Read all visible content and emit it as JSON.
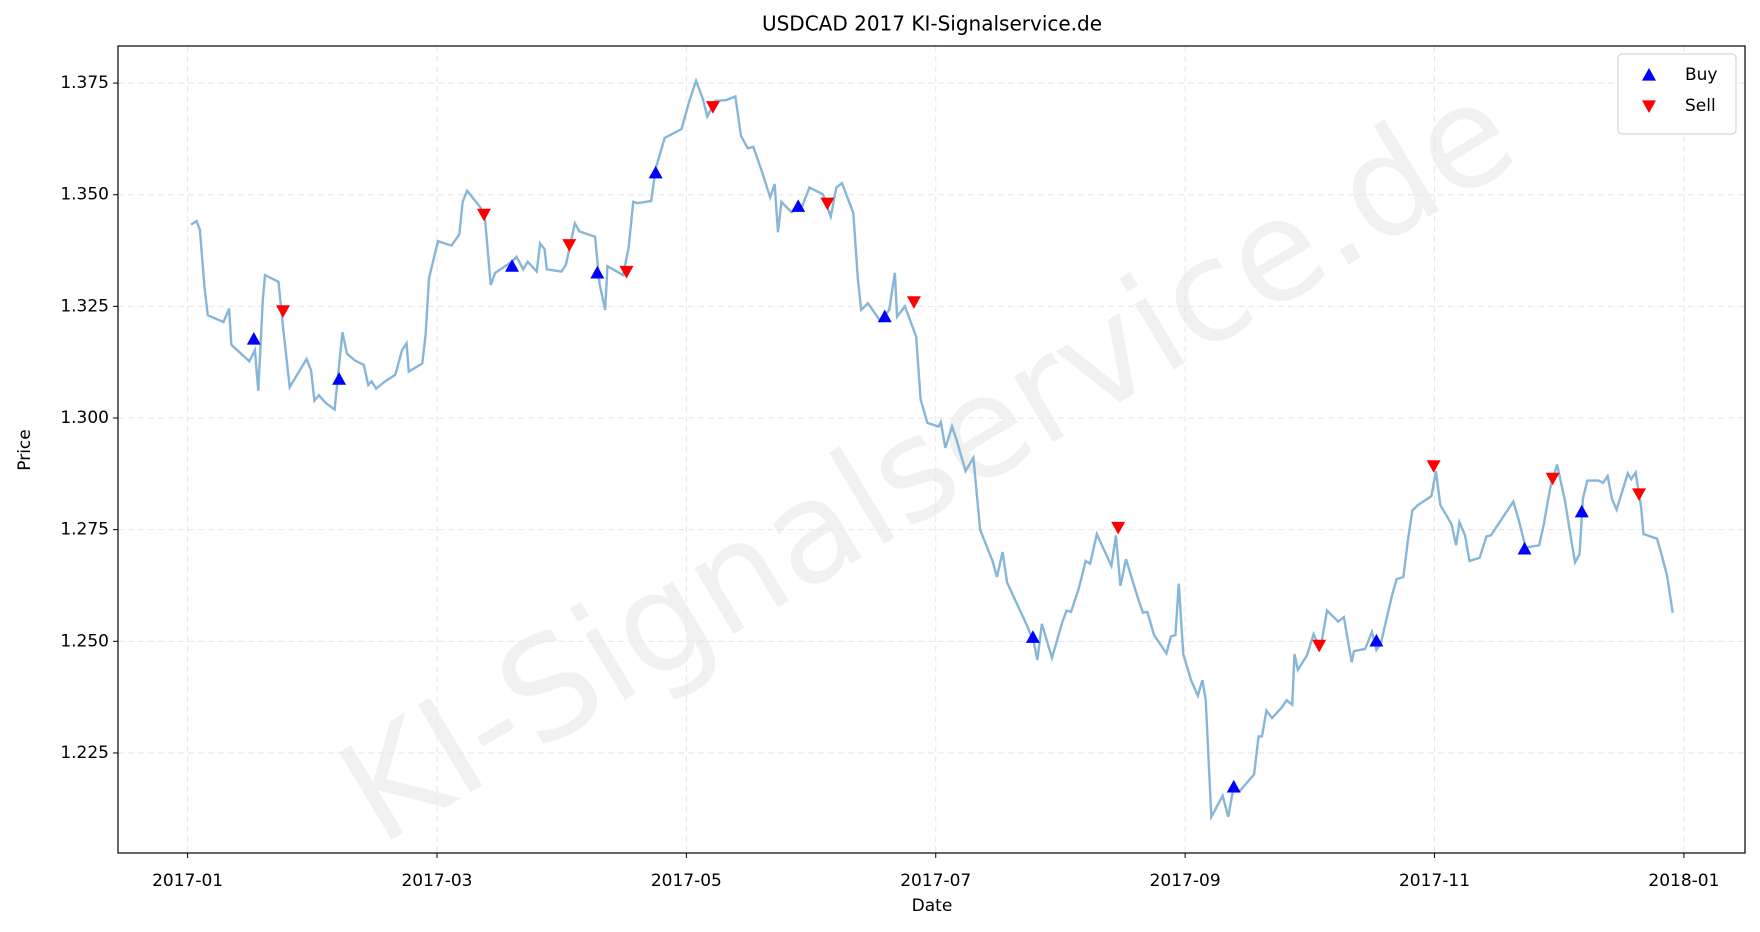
{
  "chart_data": {
    "type": "line",
    "title": "USDCAD 2017 KI-Signalservice.de",
    "x_label": "Date",
    "y_label": "Price",
    "watermark": "KI-Signalservice.de",
    "grid": true,
    "legend": "upper right",
    "xlim": [
      -0.558,
      12.49
    ],
    "ylim": [
      1.2026,
      1.3833
    ],
    "xticks": [
      {
        "value": 0,
        "label": "2017-01"
      },
      {
        "value": 2,
        "label": "2017-03"
      },
      {
        "value": 4,
        "label": "2017-05"
      },
      {
        "value": 6,
        "label": "2017-07"
      },
      {
        "value": 8,
        "label": "2017-09"
      },
      {
        "value": 10,
        "label": "2017-11"
      },
      {
        "value": 12,
        "label": "2018-01"
      }
    ],
    "yticks": [
      1.225,
      {
        "value": 1.25,
        "label": "1.250"
      },
      1.275,
      {
        "value": 1.3,
        "label": "1.300"
      },
      1.325,
      {
        "value": 1.35,
        "label": "1.350"
      },
      1.375
    ],
    "series": [
      {
        "color": "#86b6d8",
        "x": [
          0.027,
          0.072,
          0.099,
          0.135,
          0.162,
          0.288,
          0.333,
          0.351,
          0.495,
          0.54,
          0.567,
          0.603,
          0.621,
          0.729,
          0.765,
          0.819,
          0.954,
          0.99,
          1.017,
          1.053,
          1.107,
          1.179,
          1.242,
          1.278,
          1.341,
          1.413,
          1.449,
          1.476,
          1.512,
          1.584,
          1.666,
          1.72,
          1.756,
          1.774,
          1.882,
          1.909,
          1.936,
          2.008,
          2.116,
          2.179,
          2.206,
          2.242,
          2.35,
          2.386,
          2.431,
          2.467,
          2.602,
          2.638,
          2.692,
          2.728,
          2.8,
          2.827,
          2.863,
          2.881,
          2.998,
          3.034,
          3.106,
          3.142,
          3.268,
          3.304,
          3.349,
          3.367,
          3.493,
          3.538,
          3.574,
          3.61,
          3.718,
          3.754,
          3.826,
          3.961,
          4.024,
          4.078,
          4.132,
          4.168,
          4.231,
          4.321,
          4.393,
          4.438,
          4.492,
          4.537,
          4.6,
          4.672,
          4.708,
          4.735,
          4.762,
          4.843,
          4.924,
          4.987,
          5.095,
          5.158,
          5.203,
          5.248,
          5.339,
          5.375,
          5.402,
          5.456,
          5.555,
          5.627,
          5.672,
          5.69,
          5.753,
          5.843,
          5.879,
          5.933,
          6.023,
          6.041,
          6.077,
          6.131,
          6.167,
          6.239,
          6.302,
          6.356,
          6.455,
          6.491,
          6.536,
          6.572,
          6.626,
          6.734,
          6.788,
          6.815,
          6.851,
          6.932,
          7.013,
          7.049,
          7.085,
          7.148,
          7.202,
          7.238,
          7.292,
          7.346,
          7.409,
          7.445,
          7.481,
          7.526,
          7.58,
          7.625,
          7.661,
          7.697,
          7.751,
          7.85,
          7.886,
          7.922,
          7.949,
          7.985,
          8.048,
          8.102,
          8.138,
          8.165,
          8.21,
          8.301,
          8.346,
          8.382,
          8.436,
          8.553,
          8.589,
          8.616,
          8.652,
          8.697,
          8.778,
          8.814,
          8.859,
          8.877,
          8.904,
          8.976,
          9.03,
          9.066,
          9.093,
          9.138,
          9.228,
          9.273,
          9.336,
          9.354,
          9.444,
          9.498,
          9.534,
          9.57,
          9.66,
          9.696,
          9.75,
          9.786,
          9.822,
          9.867,
          9.975,
          10.011,
          10.047,
          10.137,
          10.173,
          10.2,
          10.245,
          10.281,
          10.362,
          10.416,
          10.452,
          10.632,
          10.677,
          10.731,
          10.839,
          10.875,
          10.929,
          10.983,
          11.046,
          11.091,
          11.127,
          11.163,
          11.19,
          11.226,
          11.316,
          11.352,
          11.388,
          11.424,
          11.46,
          11.55,
          11.577,
          11.613,
          11.658,
          11.676,
          11.784,
          11.82,
          11.865,
          11.91
        ],
        "values": [
          1.3433,
          1.3441,
          1.3421,
          1.3295,
          1.323,
          1.3215,
          1.3245,
          1.3164,
          1.3127,
          1.3152,
          1.3061,
          1.3263,
          1.332,
          1.3305,
          1.3205,
          1.3069,
          1.3132,
          1.3107,
          1.3039,
          1.3051,
          1.3034,
          1.3019,
          1.3192,
          1.3144,
          1.3129,
          1.3119,
          1.3074,
          1.3082,
          1.3066,
          1.3082,
          1.3097,
          1.3152,
          1.3167,
          1.3104,
          1.3122,
          1.3187,
          1.3313,
          1.3396,
          1.3386,
          1.3411,
          1.3484,
          1.3509,
          1.3471,
          1.3443,
          1.3298,
          1.3325,
          1.335,
          1.3361,
          1.3333,
          1.335,
          1.3328,
          1.3391,
          1.3378,
          1.3333,
          1.3328,
          1.3343,
          1.3436,
          1.3418,
          1.3406,
          1.33,
          1.3242,
          1.334,
          1.332,
          1.3383,
          1.3484,
          1.3481,
          1.3486,
          1.3559,
          1.3627,
          1.3647,
          1.371,
          1.3755,
          1.3715,
          1.3675,
          1.371,
          1.3712,
          1.372,
          1.3632,
          1.3604,
          1.3607,
          1.3557,
          1.3494,
          1.3524,
          1.3416,
          1.3484,
          1.3461,
          1.3471,
          1.3516,
          1.3501,
          1.3451,
          1.3516,
          1.3526,
          1.3459,
          1.3313,
          1.3242,
          1.3257,
          1.3217,
          1.3242,
          1.3325,
          1.3227,
          1.325,
          1.3182,
          1.3041,
          1.2989,
          1.2981,
          1.2991,
          1.2933,
          1.2981,
          1.2951,
          1.2881,
          1.2911,
          1.275,
          1.268,
          1.2644,
          1.27,
          1.2632,
          1.2599,
          1.2534,
          1.2496,
          1.2458,
          1.2539,
          1.2463,
          1.2541,
          1.2569,
          1.2566,
          1.2619,
          1.268,
          1.2674,
          1.274,
          1.2707,
          1.2669,
          1.2737,
          1.2624,
          1.2684,
          1.2634,
          1.2594,
          1.2564,
          1.2566,
          1.2514,
          1.2473,
          1.2511,
          1.2514,
          1.2629,
          1.2471,
          1.2413,
          1.2378,
          1.2413,
          1.237,
          1.2107,
          1.2154,
          1.2107,
          1.2164,
          1.2164,
          1.2202,
          1.2287,
          1.2287,
          1.2345,
          1.2328,
          1.2353,
          1.2368,
          1.2358,
          1.2471,
          1.2436,
          1.2468,
          1.2516,
          1.2494,
          1.2496,
          1.2569,
          1.2544,
          1.2554,
          1.2453,
          1.2478,
          1.2483,
          1.2521,
          1.2481,
          1.2496,
          1.2604,
          1.2639,
          1.2644,
          1.2725,
          1.2793,
          1.2805,
          1.2825,
          1.2881,
          1.2805,
          1.2762,
          1.2715,
          1.2767,
          1.2737,
          1.268,
          1.2687,
          1.2735,
          1.2737,
          1.2813,
          1.277,
          1.271,
          1.2715,
          1.276,
          1.2845,
          1.2896,
          1.2815,
          1.2737,
          1.2677,
          1.2695,
          1.282,
          1.286,
          1.286,
          1.2855,
          1.287,
          1.2818,
          1.2795,
          1.2876,
          1.2863,
          1.2878,
          1.2798,
          1.274,
          1.273,
          1.2695,
          1.2647,
          1.2564
        ]
      },
      {
        "name": "Buy",
        "type": "scatter",
        "marker": "up",
        "color": "#0000ff",
        "x": [
          0.531,
          1.215,
          2.602,
          3.286,
          3.754,
          4.897,
          5.591,
          6.779,
          8.39,
          9.534,
          10.722,
          11.181
        ],
        "values": [
          1.3177,
          1.3087,
          1.334,
          1.3325,
          1.3549,
          1.3474,
          1.3227,
          1.2509,
          1.2174,
          1.2501,
          1.2707,
          1.279
        ]
      },
      {
        "name": "Sell",
        "type": "scatter",
        "marker": "down",
        "color": "#ff0000",
        "x": [
          0.765,
          2.377,
          3.061,
          3.52,
          4.213,
          5.131,
          5.825,
          7.463,
          9.075,
          9.993,
          10.947,
          11.64
        ],
        "values": [
          1.324,
          1.3456,
          1.3388,
          1.3328,
          1.3697,
          1.3481,
          1.326,
          1.2755,
          1.2491,
          1.2893,
          1.2865,
          1.283
        ]
      }
    ]
  }
}
